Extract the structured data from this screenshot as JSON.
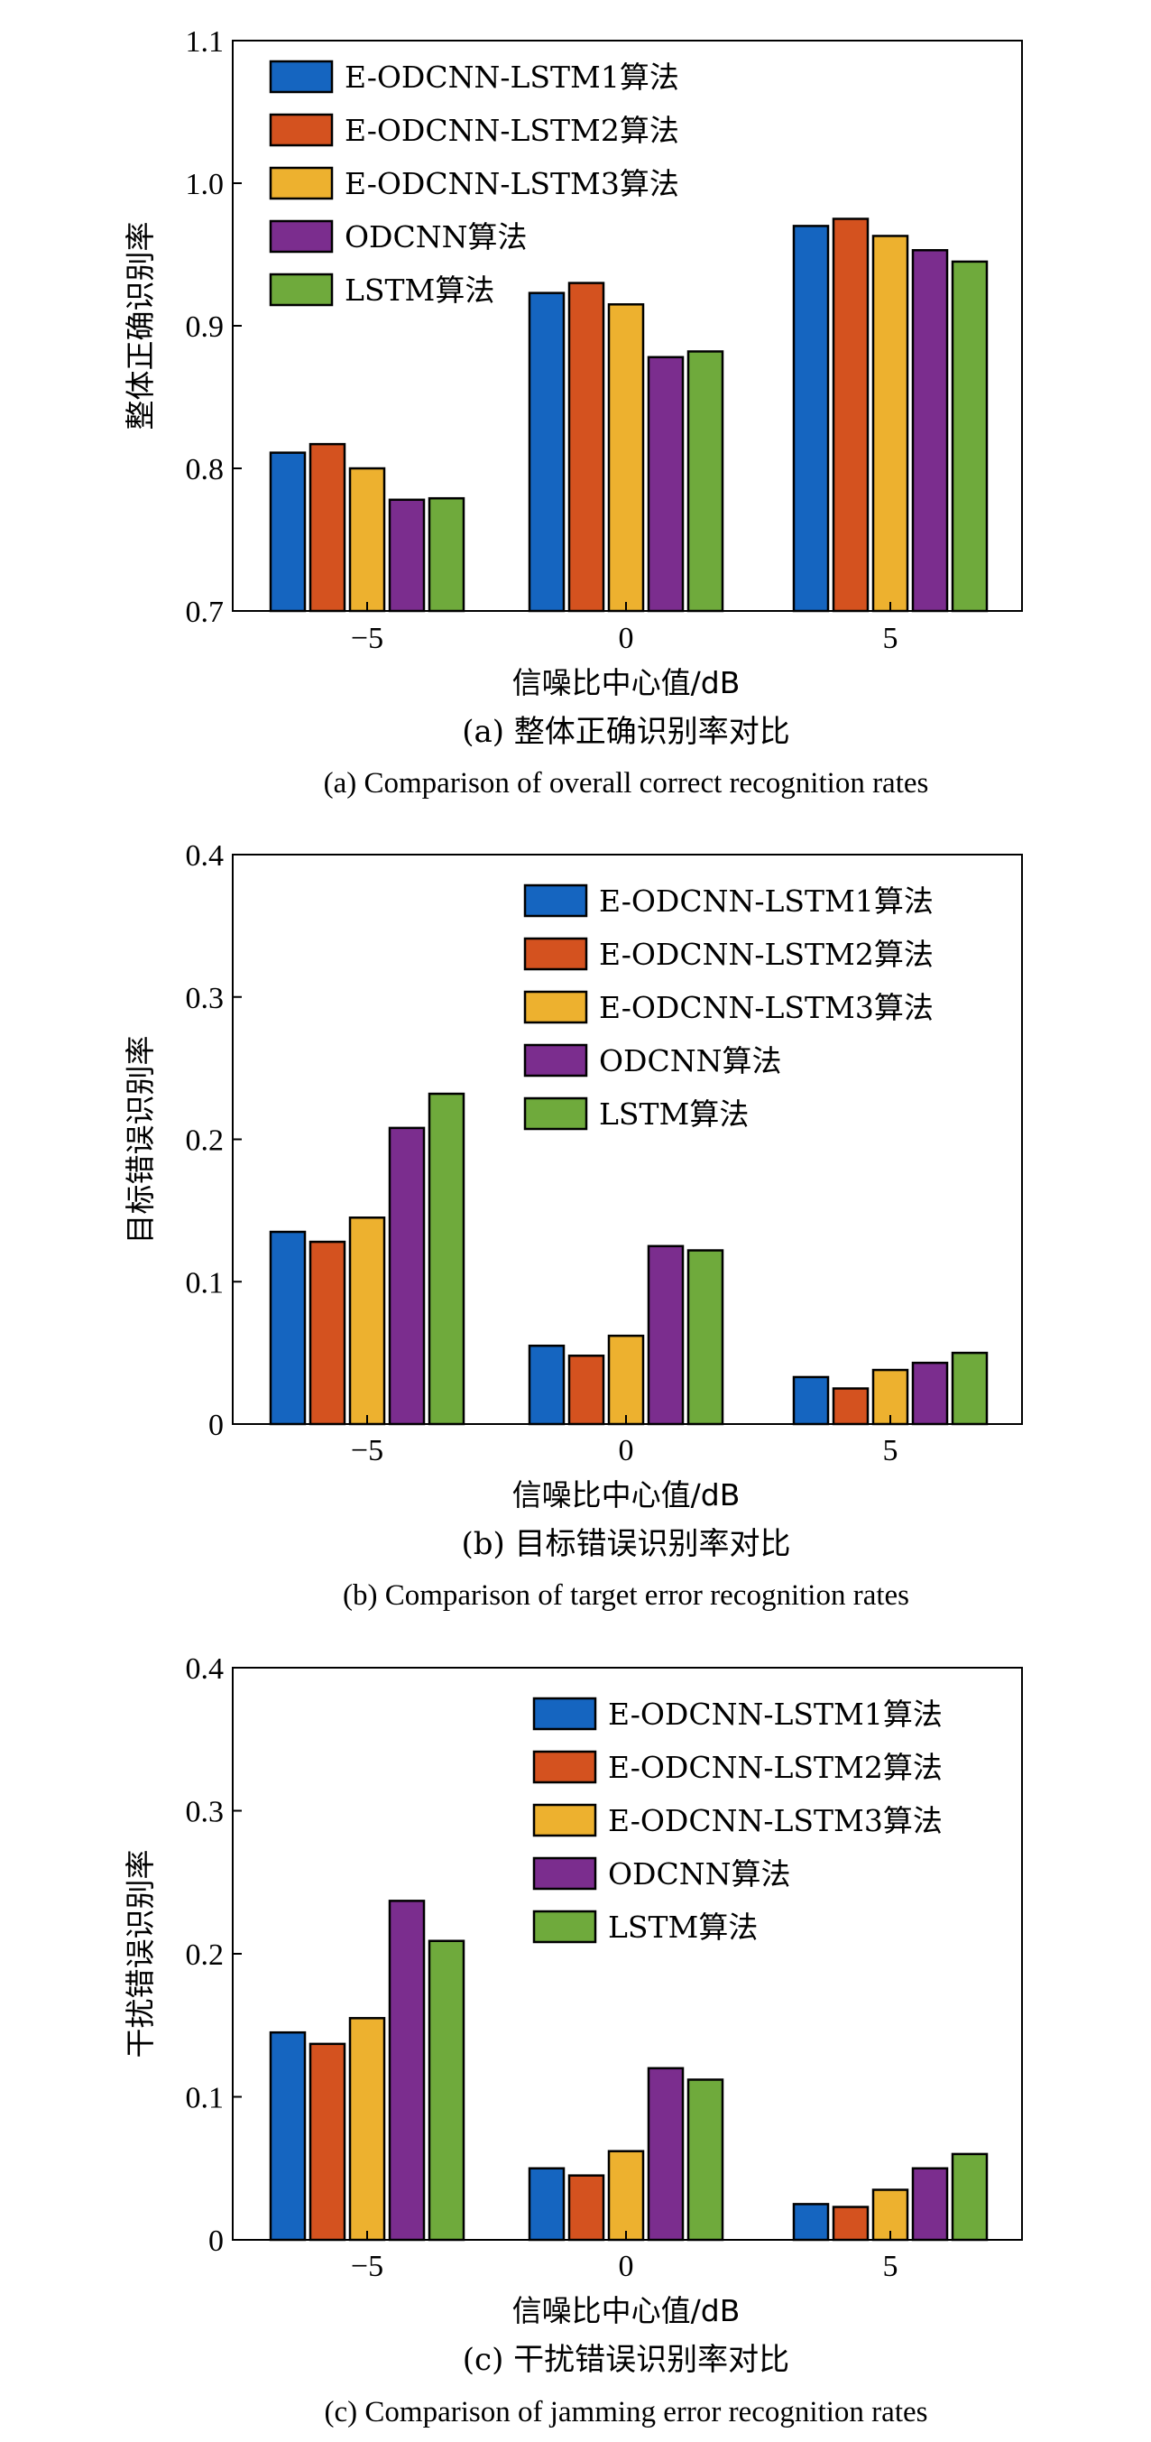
{
  "colors": {
    "series": [
      "#1565C0",
      "#D4521F",
      "#EDB12F",
      "#7B2D8E",
      "#6FAA3C"
    ]
  },
  "chart_data": [
    {
      "type": "bar",
      "categories": [
        "-5",
        "0",
        "5"
      ],
      "series": [
        {
          "name": "E-ODCNN-LSTM1算法",
          "values": [
            0.811,
            0.923,
            0.97
          ]
        },
        {
          "name": "E-ODCNN-LSTM2算法",
          "values": [
            0.817,
            0.93,
            0.975
          ]
        },
        {
          "name": "E-ODCNN-LSTM3算法",
          "values": [
            0.8,
            0.915,
            0.963
          ]
        },
        {
          "name": "ODCNN算法",
          "values": [
            0.778,
            0.878,
            0.953
          ]
        },
        {
          "name": "LSTM算法",
          "values": [
            0.779,
            0.882,
            0.945
          ]
        }
      ],
      "xlabel": "信噪比中心值/dB",
      "ylabel": "整体正确识别率",
      "ylim": [
        0.7,
        1.1
      ],
      "yticks": [
        0.7,
        0.8,
        0.9,
        1.0,
        1.1
      ],
      "ytick_labels": [
        "0.7",
        "0.8",
        "0.9",
        "1.0",
        "1.1"
      ],
      "xtick_labels": [
        "−5",
        "0",
        "5"
      ],
      "caption_cn": "(a) 整体正确识别率对比",
      "caption_en": "(a) Comparison of overall correct recognition rates",
      "legend_position": "top-left",
      "grid": false
    },
    {
      "type": "bar",
      "categories": [
        "-5",
        "0",
        "5"
      ],
      "series": [
        {
          "name": "E-ODCNN-LSTM1算法",
          "values": [
            0.135,
            0.055,
            0.033
          ]
        },
        {
          "name": "E-ODCNN-LSTM2算法",
          "values": [
            0.128,
            0.048,
            0.025
          ]
        },
        {
          "name": "E-ODCNN-LSTM3算法",
          "values": [
            0.145,
            0.062,
            0.038
          ]
        },
        {
          "name": "ODCNN算法",
          "values": [
            0.208,
            0.125,
            0.043
          ]
        },
        {
          "name": "LSTM算法",
          "values": [
            0.232,
            0.122,
            0.05
          ]
        }
      ],
      "xlabel": "信噪比中心值/dB",
      "ylabel": "目标错误识别率",
      "ylim": [
        0,
        0.4
      ],
      "yticks": [
        0,
        0.1,
        0.2,
        0.3,
        0.4
      ],
      "ytick_labels": [
        "0",
        "0.1",
        "0.2",
        "0.3",
        "0.4"
      ],
      "xtick_labels": [
        "−5",
        "0",
        "5"
      ],
      "caption_cn": "(b) 目标错误识别率对比",
      "caption_en": "(b) Comparison of target error recognition rates",
      "legend_position": "top-right",
      "grid": false
    },
    {
      "type": "bar",
      "categories": [
        "-5",
        "0",
        "5"
      ],
      "series": [
        {
          "name": "E-ODCNN-LSTM1算法",
          "values": [
            0.145,
            0.05,
            0.025
          ]
        },
        {
          "name": "E-ODCNN-LSTM2算法",
          "values": [
            0.137,
            0.045,
            0.023
          ]
        },
        {
          "name": "E-ODCNN-LSTM3算法",
          "values": [
            0.155,
            0.062,
            0.035
          ]
        },
        {
          "name": "ODCNN算法",
          "values": [
            0.237,
            0.12,
            0.05
          ]
        },
        {
          "name": "LSTM算法",
          "values": [
            0.209,
            0.112,
            0.06
          ]
        }
      ],
      "xlabel": "信噪比中心值/dB",
      "ylabel": "干扰错误识别率",
      "ylim": [
        0,
        0.4
      ],
      "yticks": [
        0,
        0.1,
        0.2,
        0.3,
        0.4
      ],
      "ytick_labels": [
        "0",
        "0.1",
        "0.2",
        "0.3",
        "0.4"
      ],
      "xtick_labels": [
        "−5",
        "0",
        "5"
      ],
      "caption_cn": "(c) 干扰错误识别率对比",
      "caption_en": "(c) Comparison of jamming error recognition rates",
      "legend_position": "top-right",
      "grid": false
    }
  ]
}
